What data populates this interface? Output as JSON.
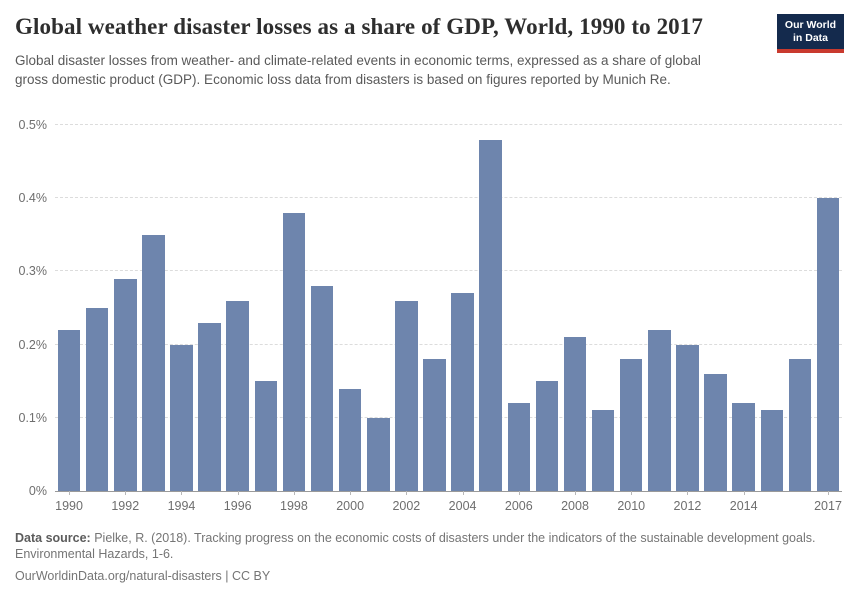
{
  "header": {
    "title": "Global weather disaster losses as a share of GDP, World, 1990 to 2017",
    "subtitle": "Global disaster losses from weather- and climate-related events in economic terms, expressed as a share of global gross domestic product (GDP). Economic loss data from disasters is based on figures reported by Munich Re.",
    "logo": {
      "line1": "Our World",
      "line2": "in Data",
      "bg_color": "#142a4d",
      "accent_color": "#c93a2e"
    }
  },
  "chart_data": {
    "type": "bar",
    "title": "Global weather disaster losses as a share of GDP, World, 1990 to 2017",
    "categories": [
      1990,
      1991,
      1992,
      1993,
      1994,
      1995,
      1996,
      1997,
      1998,
      1999,
      2000,
      2001,
      2002,
      2003,
      2004,
      2005,
      2006,
      2007,
      2008,
      2009,
      2010,
      2011,
      2012,
      2013,
      2014,
      2015,
      2016,
      2017
    ],
    "values": [
      0.22,
      0.25,
      0.29,
      0.35,
      0.2,
      0.23,
      0.26,
      0.15,
      0.38,
      0.28,
      0.14,
      0.1,
      0.26,
      0.18,
      0.27,
      0.48,
      0.12,
      0.15,
      0.21,
      0.11,
      0.18,
      0.22,
      0.2,
      0.16,
      0.12,
      0.11,
      0.18,
      0.4
    ],
    "unit": "%",
    "xlabel": "",
    "ylabel": "",
    "ylim": [
      0,
      0.5
    ],
    "y_ticks": [
      0,
      0.1,
      0.2,
      0.3,
      0.4,
      0.5
    ],
    "y_tick_labels": [
      "0%",
      "0.1%",
      "0.2%",
      "0.3%",
      "0.4%",
      "0.5%"
    ],
    "x_tick_labels": [
      "1990",
      "1992",
      "1994",
      "1996",
      "1998",
      "2000",
      "2002",
      "2004",
      "2006",
      "2008",
      "2010",
      "2012",
      "2014",
      "2017"
    ],
    "grid": true,
    "legend": false,
    "bar_color": "#6e85ad"
  },
  "footer": {
    "source_label": "Data source:",
    "source_text": "Pielke, R. (2018). Tracking progress on the economic costs of disasters under the indicators of the sustainable development goals. Environmental Hazards, 1-6.",
    "link_text": "OurWorldinData.org/natural-disasters",
    "separator": "|",
    "license": "CC BY"
  }
}
